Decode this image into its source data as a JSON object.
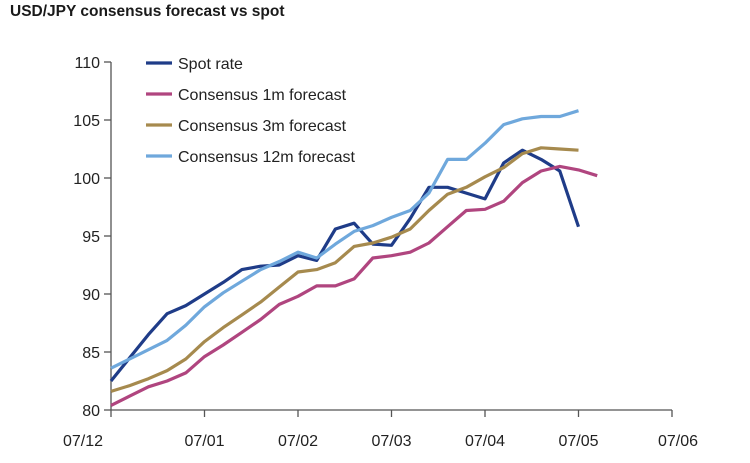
{
  "chart_data": {
    "type": "line",
    "title": "USD/JPY consensus forecast vs spot",
    "xlabel": "",
    "ylabel": "",
    "ylim": [
      80,
      110
    ],
    "yticks": [
      "80",
      "85",
      "90",
      "95",
      "100",
      "105",
      "110"
    ],
    "xticks": [
      "07/12",
      "07/01",
      "07/02",
      "07/03",
      "07/04",
      "07/05",
      "07/06"
    ],
    "grid": false,
    "legend": "top-left",
    "x_count": 31,
    "series": [
      {
        "name": "Spot rate",
        "color": "#1f3c88",
        "values": [
          82.5,
          84.5,
          86.5,
          88.3,
          89,
          90,
          91,
          92.1,
          92.4,
          92.5,
          93.3,
          92.9,
          95.6,
          96.1,
          94.3,
          94.2,
          96.5,
          99.2,
          99.2,
          98.7,
          98.2,
          101.3,
          102.4,
          101.6,
          100.6,
          95.8
        ]
      },
      {
        "name": "Consensus 1m forecast",
        "color": "#b0457f",
        "values": [
          80.4,
          81.2,
          82,
          82.5,
          83.2,
          84.6,
          85.6,
          86.7,
          87.8,
          89.1,
          89.8,
          90.7,
          90.7,
          91.3,
          93.1,
          93.3,
          93.6,
          94.4,
          95.8,
          97.2,
          97.3,
          98,
          99.6,
          100.6,
          101,
          100.7,
          100.2
        ]
      },
      {
        "name": "Consensus 3m forecast",
        "color": "#a68a4e",
        "values": [
          81.6,
          82.1,
          82.7,
          83.4,
          84.4,
          85.9,
          87.1,
          88.2,
          89.3,
          90.6,
          91.9,
          92.1,
          92.7,
          94.1,
          94.4,
          94.9,
          95.6,
          97.2,
          98.6,
          99.2,
          100.1,
          100.9,
          102.1,
          102.6,
          102.5,
          102.4
        ]
      },
      {
        "name": "Consensus 12m forecast",
        "color": "#6fa8dc",
        "values": [
          83.6,
          84.4,
          85.2,
          86,
          87.3,
          88.9,
          90.1,
          91.1,
          92.1,
          92.8,
          93.6,
          93.1,
          94.3,
          95.4,
          95.9,
          96.6,
          97.2,
          98.7,
          101.6,
          101.6,
          103,
          104.6,
          105.1,
          105.3,
          105.3,
          105.8
        ]
      }
    ]
  }
}
